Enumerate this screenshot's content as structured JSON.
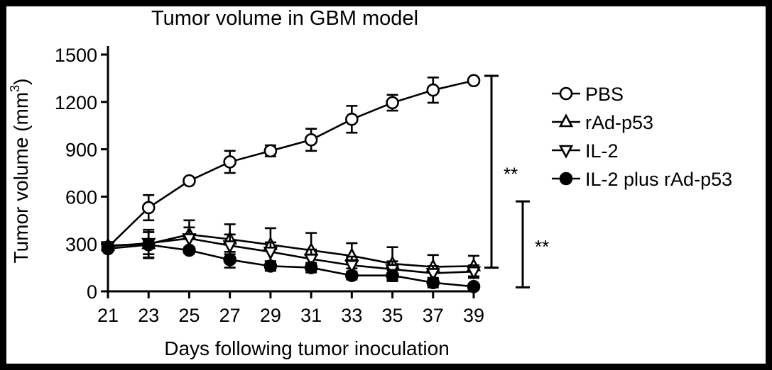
{
  "chart_data": {
    "type": "line",
    "title": "Tumor volume in GBM model",
    "xlabel": "Days following tumor inoculation",
    "ylabel": "Tumor volume (mm",
    "ylabel_sup": "3",
    "ylabel_close": ")",
    "x": [
      21,
      23,
      25,
      27,
      29,
      31,
      33,
      35,
      37,
      39
    ],
    "xticks": [
      "21",
      "23",
      "25",
      "27",
      "29",
      "31",
      "33",
      "35",
      "37",
      "39"
    ],
    "yticks": [
      "0",
      "300",
      "600",
      "900",
      "1200",
      "1500"
    ],
    "xlim": [
      21,
      39
    ],
    "ylim": [
      0,
      1500
    ],
    "grid": false,
    "legend_position": "right",
    "series": [
      {
        "name": "PBS",
        "marker": "circle-open",
        "values": [
          280,
          530,
          700,
          820,
          890,
          960,
          1090,
          1195,
          1275,
          1335
        ],
        "errors": [
          15,
          80,
          10,
          70,
          35,
          70,
          85,
          50,
          80,
          10
        ]
      },
      {
        "name": "rAd-p53",
        "marker": "triangle-up-open",
        "values": [
          290,
          300,
          360,
          330,
          295,
          260,
          225,
          175,
          155,
          160
        ],
        "errors": [
          15,
          90,
          90,
          95,
          105,
          110,
          80,
          105,
          75,
          65
        ]
      },
      {
        "name": "IL-2",
        "marker": "triangle-down-open",
        "values": [
          285,
          305,
          335,
          290,
          250,
          205,
          165,
          140,
          115,
          125
        ],
        "errors": [
          15,
          70,
          70,
          70,
          60,
          60,
          55,
          50,
          45,
          40
        ]
      },
      {
        "name": "IL-2 plus rAd-p53",
        "marker": "circle-filled",
        "values": [
          270,
          295,
          260,
          200,
          160,
          150,
          100,
          100,
          55,
          30
        ],
        "errors": [
          15,
          80,
          20,
          50,
          30,
          30,
          25,
          35,
          30,
          10
        ]
      }
    ],
    "annotations": [
      {
        "text": "**",
        "y_range": [
          150,
          1365
        ]
      },
      {
        "text": "**",
        "y_range": [
          25,
          570
        ]
      }
    ]
  }
}
